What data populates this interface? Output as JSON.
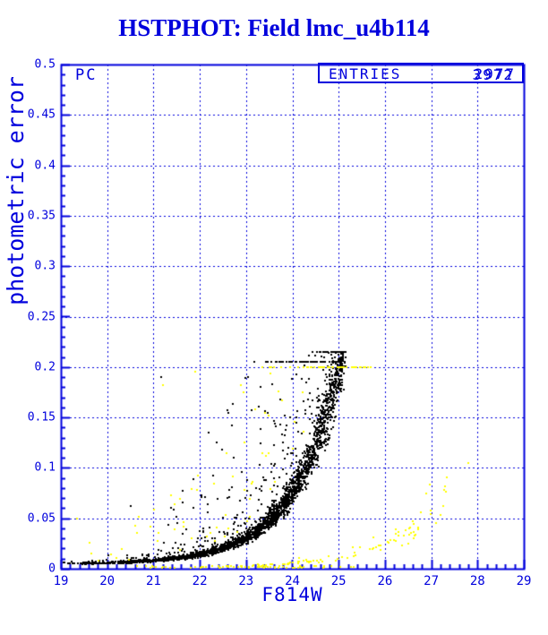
{
  "theme": {
    "accent": "#0000dd",
    "background": "#ffffff",
    "marker_black": "#000000",
    "marker_yellow": "#ffff00"
  },
  "chart_data": {
    "type": "scatter",
    "title": "HSTPHOT: Field lmc_u4b114",
    "chip_label": "PC",
    "stats_box": {
      "label": "ENTRIES",
      "values": [
        "2977",
        "3972"
      ]
    },
    "xlabel": "F814W",
    "ylabel": "photometric error",
    "xlim": [
      19,
      29
    ],
    "ylim": [
      0,
      0.5
    ],
    "x_major_step": 1,
    "x_minor_step": 0.2,
    "y_major_step": 0.05,
    "y_minor_step": 0.01,
    "x_tick_labels": [
      "19",
      "20",
      "21",
      "22",
      "23",
      "24",
      "25",
      "26",
      "27",
      "28",
      "29"
    ],
    "y_tick_labels": [
      "0",
      "0.05",
      "0.1",
      "0.15",
      "0.2",
      "0.25",
      "0.3",
      "0.35",
      "0.4",
      "0.45",
      "0.5"
    ],
    "grid": {
      "on": true,
      "style": "dashed",
      "color": "#0000dd"
    },
    "legend": "none",
    "main_sequence_waypoints": [
      [
        19,
        0.005
      ],
      [
        20,
        0.006
      ],
      [
        21,
        0.008
      ],
      [
        22,
        0.014
      ],
      [
        23,
        0.031
      ],
      [
        24,
        0.076
      ],
      [
        24.5,
        0.125
      ],
      [
        25,
        0.198
      ],
      [
        25.15,
        0.215
      ]
    ],
    "secondary_sequence_waypoints": [
      [
        23,
        0.0022
      ],
      [
        24,
        0.005
      ],
      [
        25,
        0.012
      ],
      [
        26,
        0.027
      ],
      [
        27,
        0.057
      ],
      [
        27.4,
        0.079
      ]
    ],
    "curves": {
      "main": {
        "c": 0.0045,
        "A": 0.00048,
        "k": 1.0,
        "m0": 19
      },
      "secondary": {
        "c": 0.0005,
        "A": 0.005,
        "k": 0.81,
        "m0": 24
      }
    },
    "series": [
      {
        "name": "pc-main-sequence",
        "color": "#000000",
        "marker_px": 2,
        "n": 2600,
        "model": "sequence",
        "curve": "main",
        "m_min": 19,
        "m_max": 25.15,
        "m_power": 0.5,
        "sigma": 0.1,
        "tail_frac": 0.12,
        "tail_max": 1.2,
        "err_max": 0.215,
        "seed": 42,
        "extra_points": [
          [
            21.17,
            0.19
          ],
          [
            22.6,
            0.157
          ],
          [
            23.05,
            0.19
          ],
          [
            21.44,
            0.059
          ],
          [
            20.5,
            0.062
          ],
          [
            23.3,
            0.103
          ],
          [
            22.2,
            0.135
          ]
        ]
      },
      {
        "name": "pc-black-outliers",
        "color": "#000000",
        "marker_px": 2,
        "n": 150,
        "model": "outliers",
        "curve": "main",
        "m_min": 20.2,
        "m_max": 25.1,
        "m_power": 0.55,
        "min_factor": 1.5,
        "max_factor": 7,
        "err_max": 0.205,
        "seed": 7,
        "extra_points": []
      },
      {
        "name": "wfc-bottom-trail",
        "color": "#ffff00",
        "marker_px": 2,
        "n": 70,
        "model": "flat",
        "m_min": 20.6,
        "m_max": 25.4,
        "m_power": 1,
        "err_min": 0.0005,
        "err_max": 0.003,
        "seed": 11,
        "extra_points": []
      },
      {
        "name": "wfc-faint-sequence",
        "color": "#ffff00",
        "marker_px": 2,
        "n": 90,
        "model": "sequence",
        "curve": "secondary",
        "m_min": 22.8,
        "m_max": 27.4,
        "m_power": 0.85,
        "sigma": 0.18,
        "tail_frac": 0.05,
        "tail_max": 0.8,
        "err_max": 0.12,
        "seed": 23,
        "extra_points": [
          [
            27.8,
            0.105
          ],
          [
            26.9,
            0.075
          ],
          [
            27.25,
            0.062
          ],
          [
            26.6,
            0.047
          ]
        ]
      },
      {
        "name": "wfc-outliers",
        "color": "#ffff00",
        "marker_px": 2,
        "n": 105,
        "model": "outliers",
        "curve": "main",
        "m_min": 19.3,
        "m_max": 25.8,
        "m_power": 0.6,
        "min_factor": 1.4,
        "max_factor": 8,
        "err_max": 0.2,
        "seed": 31,
        "extra_points": [
          [
            21.9,
            0.195
          ],
          [
            23.7,
            0.176
          ],
          [
            21.2,
            0.182
          ],
          [
            19.35,
            0.05
          ]
        ]
      }
    ]
  }
}
